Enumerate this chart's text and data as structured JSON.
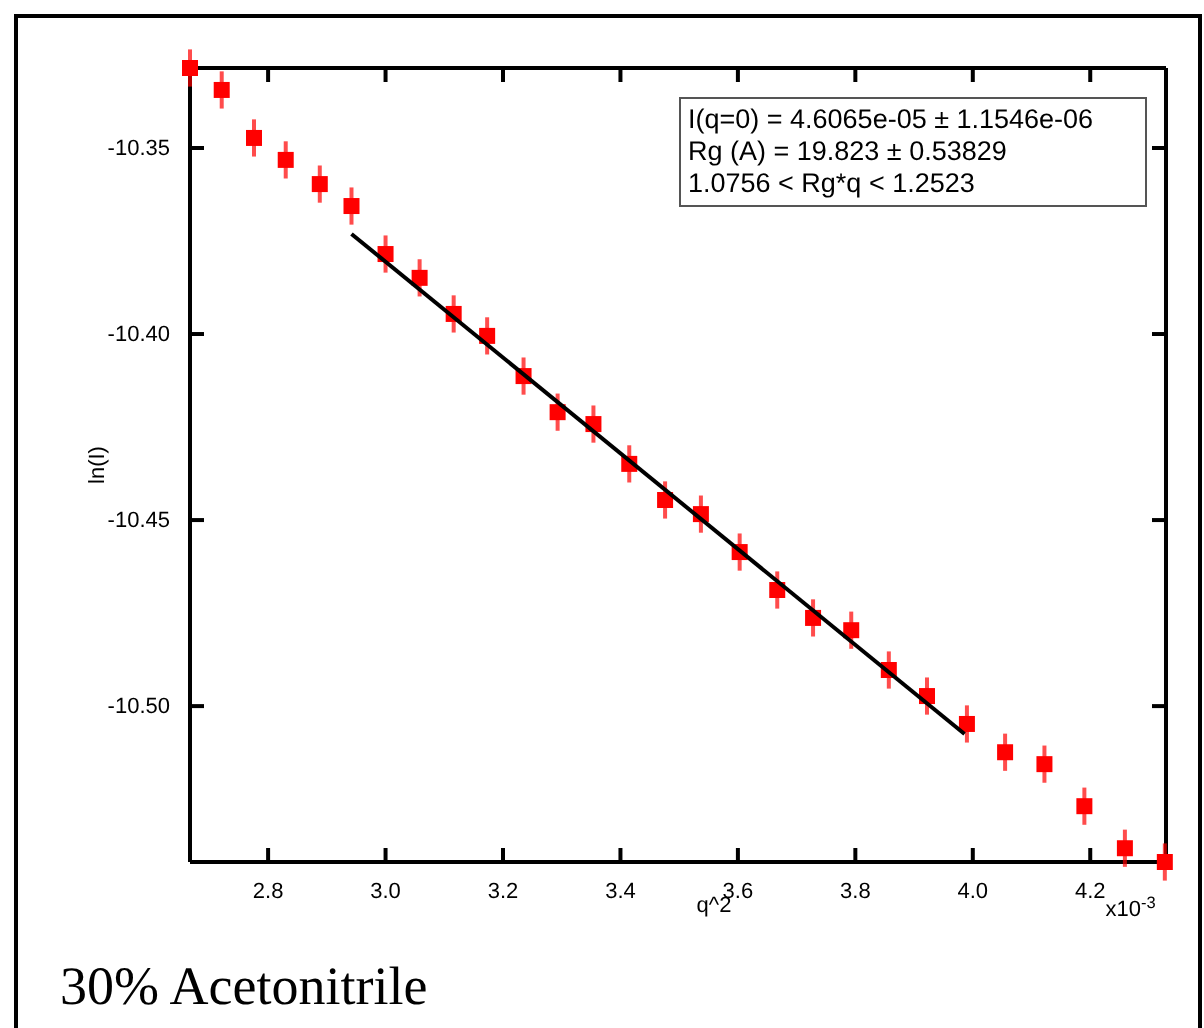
{
  "chart_data": {
    "type": "scatter",
    "title": "30% Acetonitrile",
    "xlabel": "q^2",
    "ylabel": "ln(I)",
    "annotations": [
      "I(q=0) =  4.6065e-05 ± 1.1546e-06",
      "Rg (A) = 19.823 ± 0.53829",
      "1.0756 < Rg*q < 1.2523",
      "x10$^{-3}$"
    ],
    "xlim": [
      2.667,
      4.329
    ],
    "ylim": [
      -10.5419,
      -10.3285
    ],
    "xticks": [
      2.8,
      {
        "value": 3.0,
        "label": "3.0"
      },
      3.2,
      3.4,
      3.6,
      3.8,
      {
        "value": 4.0,
        "label": "4.0"
      },
      4.2
    ],
    "yticks": [
      {
        "value": -10.35,
        "label": "-10.35"
      },
      {
        "value": -10.4,
        "label": "-10.40"
      },
      {
        "value": -10.45,
        "label": "-10.45"
      },
      {
        "value": -10.5,
        "label": "-10.50"
      }
    ],
    "grid": false,
    "series": [
      {
        "color": "#ff0000",
        "marker": "square",
        "x": [
          2.667,
          2.721,
          2.776,
          2.83,
          2.888,
          2.942,
          3.0,
          3.058,
          3.116,
          3.173,
          3.235,
          3.293,
          3.354,
          3.415,
          3.476,
          3.537,
          3.603,
          3.667,
          3.728,
          3.793,
          3.857,
          3.922,
          3.99,
          4.055,
          4.122,
          4.19,
          4.259,
          4.327
        ],
        "values": [
          -10.3285,
          -10.3344,
          -10.3473,
          -10.3532,
          -10.3597,
          -10.3656,
          -10.3785,
          -10.3849,
          -10.3946,
          -10.4005,
          -10.4113,
          -10.421,
          -10.4242,
          -10.4349,
          -10.4446,
          -10.4484,
          -10.4586,
          -10.4688,
          -10.4763,
          -10.4796,
          -10.4903,
          -10.4973,
          -10.5048,
          -10.5124,
          -10.5156,
          -10.5269,
          -10.5382,
          -10.5419
        ],
        "errors": [
          0.005,
          0.005,
          0.005,
          0.005,
          0.005,
          0.005,
          0.005,
          0.005,
          0.005,
          0.005,
          0.005,
          0.005,
          0.005,
          0.005,
          0.005,
          0.005,
          0.005,
          0.005,
          0.005,
          0.005,
          0.005,
          0.005,
          0.005,
          0.005,
          0.005,
          0.005,
          0.005,
          0.005
        ]
      },
      {
        "type": "line",
        "color": "#000000",
        "x": [
          2.942,
          3.986
        ],
        "values": [
          -10.3731,
          -10.5075
        ],
        "line_style": "solid"
      }
    ]
  }
}
